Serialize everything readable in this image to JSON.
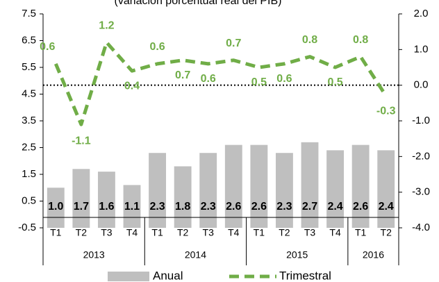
{
  "chart_data": {
    "type": "bar_line",
    "title": "(variación porcentual real del PIB)",
    "groups": [
      {
        "label": "2013",
        "categories": [
          "T1",
          "T2",
          "T3",
          "T4"
        ]
      },
      {
        "label": "2014",
        "categories": [
          "T1",
          "T2",
          "T3",
          "T4"
        ]
      },
      {
        "label": "2015",
        "categories": [
          "T1",
          "T2",
          "T3",
          "T4"
        ]
      },
      {
        "label": "2016",
        "categories": [
          "T1",
          "T2"
        ]
      }
    ],
    "series": [
      {
        "name": "Anual",
        "type": "bar",
        "color": "#bfbfbf",
        "values": [
          1.0,
          1.7,
          1.6,
          1.1,
          2.3,
          1.8,
          2.3,
          2.6,
          2.6,
          2.3,
          2.7,
          2.4,
          2.6,
          2.4
        ],
        "value_labels": [
          "1.0",
          "1.7",
          "1.6",
          "1.1",
          "2.3",
          "1.8",
          "2.3",
          "2.6",
          "2.6",
          "2.3",
          "2.7",
          "2.4",
          "2.6",
          "2.4"
        ]
      },
      {
        "name": "Trimestral",
        "type": "line",
        "axis": "y2",
        "color": "#70ad47",
        "dashed": true,
        "values": [
          0.6,
          -1.1,
          1.2,
          0.4,
          0.6,
          0.7,
          0.6,
          0.7,
          0.5,
          0.6,
          0.8,
          0.5,
          0.8,
          -0.3
        ]
      }
    ],
    "ylim": [
      -0.5,
      7.5
    ],
    "yticks": [
      -0.5,
      0.5,
      1.5,
      2.5,
      3.5,
      4.5,
      5.5,
      6.5,
      7.5
    ],
    "y2lim": [
      -4.0,
      2.0
    ],
    "y2ticks": [
      {
        "value": -4,
        "label": "-4.0"
      },
      {
        "value": -3,
        "label": "-3.0"
      },
      {
        "value": -2,
        "label": "-2.0"
      },
      {
        "value": -1,
        "label": "-1.0"
      },
      {
        "value": 0,
        "label": "0.0"
      },
      {
        "value": 1,
        "label": "1.0"
      },
      {
        "value": 2,
        "label": "2.0"
      }
    ],
    "y2_zero_line": true,
    "legend": "bottom"
  }
}
